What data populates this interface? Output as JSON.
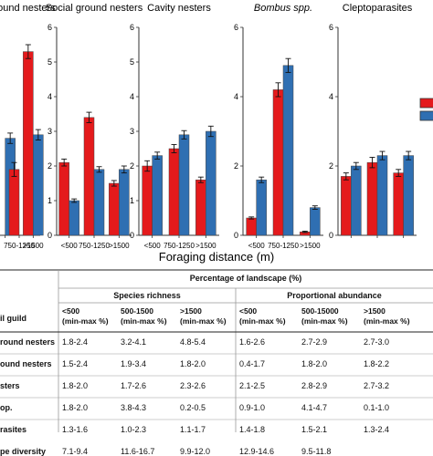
{
  "chart_data": [
    {
      "type": "bar",
      "title": "ground nesters",
      "categories": [
        "",
        "750-1250",
        ">1500"
      ],
      "series": [
        {
          "values": [
            null,
            1.9,
            5.3
          ],
          "err": [
            null,
            0.2,
            0.2
          ]
        },
        {
          "values": [
            2.8,
            null,
            2.9
          ],
          "err": [
            0.15,
            null,
            0.15
          ]
        }
      ],
      "ylim": [
        0,
        6
      ],
      "show_yticks": false
    },
    {
      "type": "bar",
      "title": "Social ground nesters",
      "categories": [
        "<500",
        "750-1250",
        ">1500"
      ],
      "series": [
        {
          "values": [
            2.1,
            3.4,
            1.5
          ],
          "err": [
            0.1,
            0.15,
            0.08
          ]
        },
        {
          "values": [
            1.0,
            1.9,
            1.9
          ],
          "err": [
            0.05,
            0.08,
            0.1
          ]
        }
      ],
      "ylim": [
        0,
        6
      ],
      "yticks": [
        "0",
        "1",
        "2",
        "3",
        "4",
        "5",
        "6"
      ]
    },
    {
      "type": "bar",
      "title": "Cavity nesters",
      "categories": [
        "<500",
        "750-1250",
        ">1500"
      ],
      "series": [
        {
          "values": [
            2.0,
            2.5,
            1.6
          ],
          "err": [
            0.15,
            0.12,
            0.08
          ]
        },
        {
          "values": [
            2.3,
            2.9,
            3.0
          ],
          "err": [
            0.1,
            0.12,
            0.15
          ]
        }
      ],
      "ylim": [
        0,
        6
      ],
      "yticks": [
        "0",
        "1",
        "2",
        "3",
        "4",
        "5",
        "6"
      ]
    },
    {
      "type": "bar",
      "title": "Bombus spp.",
      "title_italic": true,
      "categories": [
        "<500",
        "750-1250",
        ">1500"
      ],
      "series": [
        {
          "values": [
            0.5,
            4.2,
            0.1
          ],
          "err": [
            0.03,
            0.2,
            0.02
          ]
        },
        {
          "values": [
            1.6,
            4.9,
            0.8
          ],
          "err": [
            0.08,
            0.2,
            0.05
          ]
        }
      ],
      "ylim": [
        0,
        6
      ],
      "yticks": [
        "0",
        "2",
        "4",
        "6"
      ]
    },
    {
      "type": "bar",
      "title": "Cleptoparasites",
      "categories": [
        "",
        "",
        ""
      ],
      "series": [
        {
          "values": [
            1.7,
            2.1,
            1.8
          ],
          "err": [
            0.1,
            0.15,
            0.1
          ]
        },
        {
          "values": [
            2.0,
            2.3,
            2.3
          ],
          "err": [
            0.1,
            0.12,
            0.12
          ]
        }
      ],
      "ylim": [
        0,
        6
      ],
      "yticks": [
        "0",
        "2",
        "4",
        "6"
      ]
    }
  ],
  "colors": {
    "series1": "#e41a1c",
    "series2": "#2f6fb2",
    "axis": "#333333"
  },
  "xlabel": "Foraging distance (m)",
  "table": {
    "header": "Percentage of landscape (%)",
    "group1": "Species richness",
    "group2": "Proportional abundance",
    "guild_label": "il guild",
    "cols": [
      "<500\n(min-max %)",
      "500-1500\n(min-max %)",
      ">1500\n(min-max %)",
      "<500\n(min-max %)",
      "500-15000\n(min-max %)",
      ">1500\n(min-max %)"
    ],
    "rows": [
      {
        "name": "round nesters",
        "v": [
          "1.8-2.4",
          "3.2-4.1",
          "4.8-5.4",
          "1.6-2.6",
          "2.7-2.9",
          "2.7-3.0"
        ]
      },
      {
        "name": "ound nesters",
        "v": [
          "1.5-2.4",
          "1.9-3.4",
          "1.8-2.0",
          "0.4-1.7",
          "1.8-2.0",
          "1.8-2.2"
        ]
      },
      {
        "name": "sters",
        "v": [
          "1.8-2.0",
          "1.7-2.6",
          "2.3-2.6",
          "2.1-2.5",
          "2.8-2.9",
          "2.7-3.2"
        ]
      },
      {
        "name": "op.",
        "v": [
          "1.8-2.0",
          "3.8-4.3",
          "0.2-0.5",
          "0.9-1.0",
          "4.1-4.7",
          "0.1-1.0"
        ]
      },
      {
        "name": "rasites",
        "v": [
          "1.3-1.6",
          "1.0-2.3",
          "1.1-1.7",
          "1.4-1.8",
          "1.5-2.1",
          "1.3-2.4"
        ]
      },
      {
        "name": "pe diversity",
        "v": [
          "7.1-9.4",
          "11.6-16.7",
          "9.9-12.0",
          "12.9-14.6",
          "9.5-11.8",
          ""
        ]
      }
    ]
  }
}
